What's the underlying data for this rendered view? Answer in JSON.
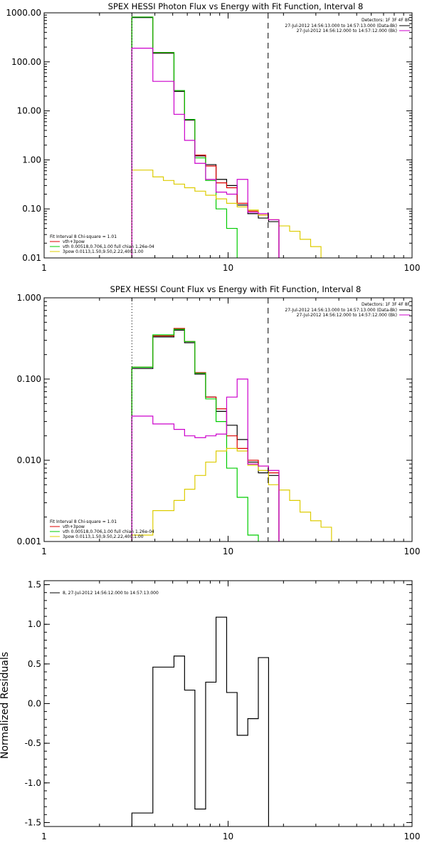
{
  "chart_data": [
    {
      "type": "line",
      "title": "SPEX HESSI Photon Flux vs Energy with Fit Function, Interval 8",
      "xlabel": "",
      "ylabel": "",
      "xscale": "log",
      "yscale": "log",
      "xlim": [
        1,
        100
      ],
      "ylim": [
        0.01,
        1000
      ],
      "xticks": [
        1,
        10,
        100
      ],
      "xtick_labels": [
        "1",
        "10",
        "100"
      ],
      "yticks": [
        0.01,
        0.1,
        1,
        10,
        100,
        1000
      ],
      "ytick_labels": [
        "0.01",
        "0.10",
        "1.00",
        "10.00",
        "100.00",
        "1000.00"
      ],
      "vlines": [
        {
          "x": 3.0,
          "style": "dotted"
        },
        {
          "x": 16.5,
          "style": "dashed"
        }
      ],
      "info_block": {
        "detectors": "Detectors: 1F 3F 4F 8F",
        "lines": [
          {
            "text": "27-Jul-2012 14:56:13.000 to 14:57:13.000 (Data-Bk)",
            "color": "#000000"
          },
          {
            "text": "27-Jul-2012 14:56:12.000 to 14:57:12.000 (Bk)",
            "color": "#cc00cc"
          }
        ]
      },
      "legend": {
        "position": "bottom-left",
        "title": "Fit Interval 8   Chi-square = 1.01",
        "entries": [
          {
            "label": "vth+3pow",
            "color": "#dd0000"
          },
          {
            "label": "vth 0.00518,0.706,1.00  full chian 1.26e-04",
            "color": "#00cc00"
          },
          {
            "label": "3pow 0.0113,1.50,9.50,2.22,400,1.00",
            "color": "#ddcc00"
          }
        ]
      },
      "edges": [
        3.0,
        3.43,
        3.9,
        4.45,
        5.08,
        5.8,
        6.6,
        7.55,
        8.6,
        9.82,
        11.2,
        12.8,
        14.6,
        16.6,
        18.9,
        21.6,
        24.6,
        28.1,
        32.0
      ],
      "series": [
        {
          "name": "Data-Bk",
          "color": "#000000",
          "values": [
            800,
            800,
            150,
            150,
            25,
            6.5,
            1.2,
            0.8,
            0.4,
            0.3,
            0.12,
            0.08,
            0.065,
            0.055
          ]
        },
        {
          "name": "vth+3pow",
          "color": "#dd0000",
          "values": [
            820,
            820,
            155,
            155,
            26,
            6.7,
            1.25,
            0.75,
            0.34,
            0.27,
            0.13,
            0.09,
            0.075,
            0.06
          ]
        },
        {
          "name": "vth",
          "color": "#00cc00",
          "values": [
            820,
            820,
            155,
            155,
            26,
            6.7,
            1.1,
            0.38,
            0.1,
            0.04
          ]
        },
        {
          "name": "3pow",
          "color": "#ddcc00",
          "values": [
            0.62,
            0.62,
            0.45,
            0.38,
            0.32,
            0.27,
            0.23,
            0.19,
            0.16,
            0.13,
            0.11,
            0.095,
            0.075,
            0.06,
            0.045,
            0.035,
            0.024,
            0.017
          ]
        },
        {
          "name": "Bk",
          "color": "#cc00cc",
          "values": [
            190,
            190,
            40,
            40,
            8.5,
            2.5,
            0.85,
            0.4,
            0.22,
            0.2,
            0.4,
            0.085,
            0.08,
            0.06
          ]
        }
      ]
    },
    {
      "type": "line",
      "title": "SPEX HESSI Count Flux vs Energy with Fit Function, Interval 8",
      "xlabel": "",
      "ylabel": "",
      "xscale": "log",
      "yscale": "log",
      "xlim": [
        1,
        100
      ],
      "ylim": [
        0.001,
        1
      ],
      "xticks": [
        1,
        10,
        100
      ],
      "xtick_labels": [
        "1",
        "10",
        "100"
      ],
      "yticks": [
        0.001,
        0.01,
        0.1,
        1
      ],
      "ytick_labels": [
        "0.001",
        "0.010",
        "0.100",
        "1.000"
      ],
      "vlines": [
        {
          "x": 3.0,
          "style": "dotted"
        },
        {
          "x": 16.5,
          "style": "dashed"
        }
      ],
      "info_block": {
        "detectors": "Detectors: 1F 3F 4F 8F",
        "lines": [
          {
            "text": "27-Jul-2012 14:56:13.000 to 14:57:13.000 (Data-Bk)",
            "color": "#000000"
          },
          {
            "text": "27-Jul-2012 14:56:12.000 to 14:57:12.000 (Bk)",
            "color": "#cc00cc"
          }
        ]
      },
      "legend": {
        "position": "bottom-left",
        "title": "Fit Interval 8   Chi-square = 1.01",
        "entries": [
          {
            "label": "vth+3pow",
            "color": "#dd0000"
          },
          {
            "label": "vth 0.00518,0.706,1.00  full chian 1.26e-04",
            "color": "#00cc00"
          },
          {
            "label": "3pow 0.0113,1.50,9.50,2.22,400,1.00",
            "color": "#ddcc00"
          }
        ]
      },
      "edges": [
        3.0,
        3.43,
        3.9,
        4.45,
        5.08,
        5.8,
        6.6,
        7.55,
        8.6,
        9.82,
        11.2,
        12.8,
        14.6,
        16.6,
        18.9,
        21.6,
        24.6,
        28.1,
        32.0,
        36.5
      ],
      "series": [
        {
          "name": "Data-Bk",
          "color": "#000000",
          "values": [
            0.135,
            0.135,
            0.33,
            0.33,
            0.4,
            0.28,
            0.115,
            0.06,
            0.04,
            0.027,
            0.018,
            0.0095,
            0.007,
            0.0065
          ]
        },
        {
          "name": "vth+3pow",
          "color": "#dd0000",
          "values": [
            0.14,
            0.14,
            0.34,
            0.34,
            0.42,
            0.29,
            0.12,
            0.06,
            0.043,
            0.02,
            0.014,
            0.01,
            0.0085,
            0.007
          ]
        },
        {
          "name": "vth",
          "color": "#00cc00",
          "values": [
            0.14,
            0.14,
            0.35,
            0.35,
            0.41,
            0.29,
            0.118,
            0.057,
            0.03,
            0.008,
            0.0035,
            0.0012
          ]
        },
        {
          "name": "3pow",
          "color": "#ddcc00",
          "values": [
            0.0012,
            0.0012,
            0.0024,
            0.0024,
            0.0032,
            0.0044,
            0.0065,
            0.0095,
            0.013,
            0.014,
            0.013,
            0.0087,
            0.0075,
            0.005,
            0.0043,
            0.0032,
            0.0023,
            0.0018,
            0.0015,
            0.001
          ]
        },
        {
          "name": "Bk",
          "color": "#cc00cc",
          "values": [
            0.035,
            0.035,
            0.028,
            0.028,
            0.024,
            0.02,
            0.019,
            0.02,
            0.021,
            0.06,
            0.1,
            0.009,
            0.0085,
            0.0075
          ]
        }
      ]
    },
    {
      "type": "line",
      "title": "",
      "xlabel": "",
      "ylabel": "Normalized Residuals",
      "xscale": "log",
      "yscale": "linear",
      "xlim": [
        1,
        100
      ],
      "ylim": [
        -1.55,
        1.55
      ],
      "xticks": [
        1,
        10,
        100
      ],
      "xtick_labels": [
        "1",
        "10",
        "100"
      ],
      "yticks": [
        -1.5,
        -1.0,
        -0.5,
        0.0,
        0.5,
        1.0,
        1.5
      ],
      "ytick_labels": [
        "-1.5",
        "-1.0",
        "-0.5",
        "0.0",
        "0.5",
        "1.0",
        "1.5"
      ],
      "legend": {
        "position": "top-left",
        "entries": [
          {
            "label": "8, 27-Jul-2012 14:56:12.000 to 14:57:13.000",
            "color": "#000000"
          }
        ]
      },
      "edges": [
        3.0,
        3.43,
        3.9,
        4.45,
        5.08,
        5.8,
        6.6,
        7.55,
        8.6,
        9.82,
        11.2,
        12.8,
        14.6,
        16.6
      ],
      "series": [
        {
          "name": "residuals",
          "color": "#000000",
          "values": [
            -1.38,
            -1.38,
            0.46,
            0.46,
            0.6,
            0.17,
            -1.33,
            0.27,
            1.09,
            0.14,
            -0.4,
            -0.19,
            0.58
          ]
        }
      ]
    }
  ]
}
